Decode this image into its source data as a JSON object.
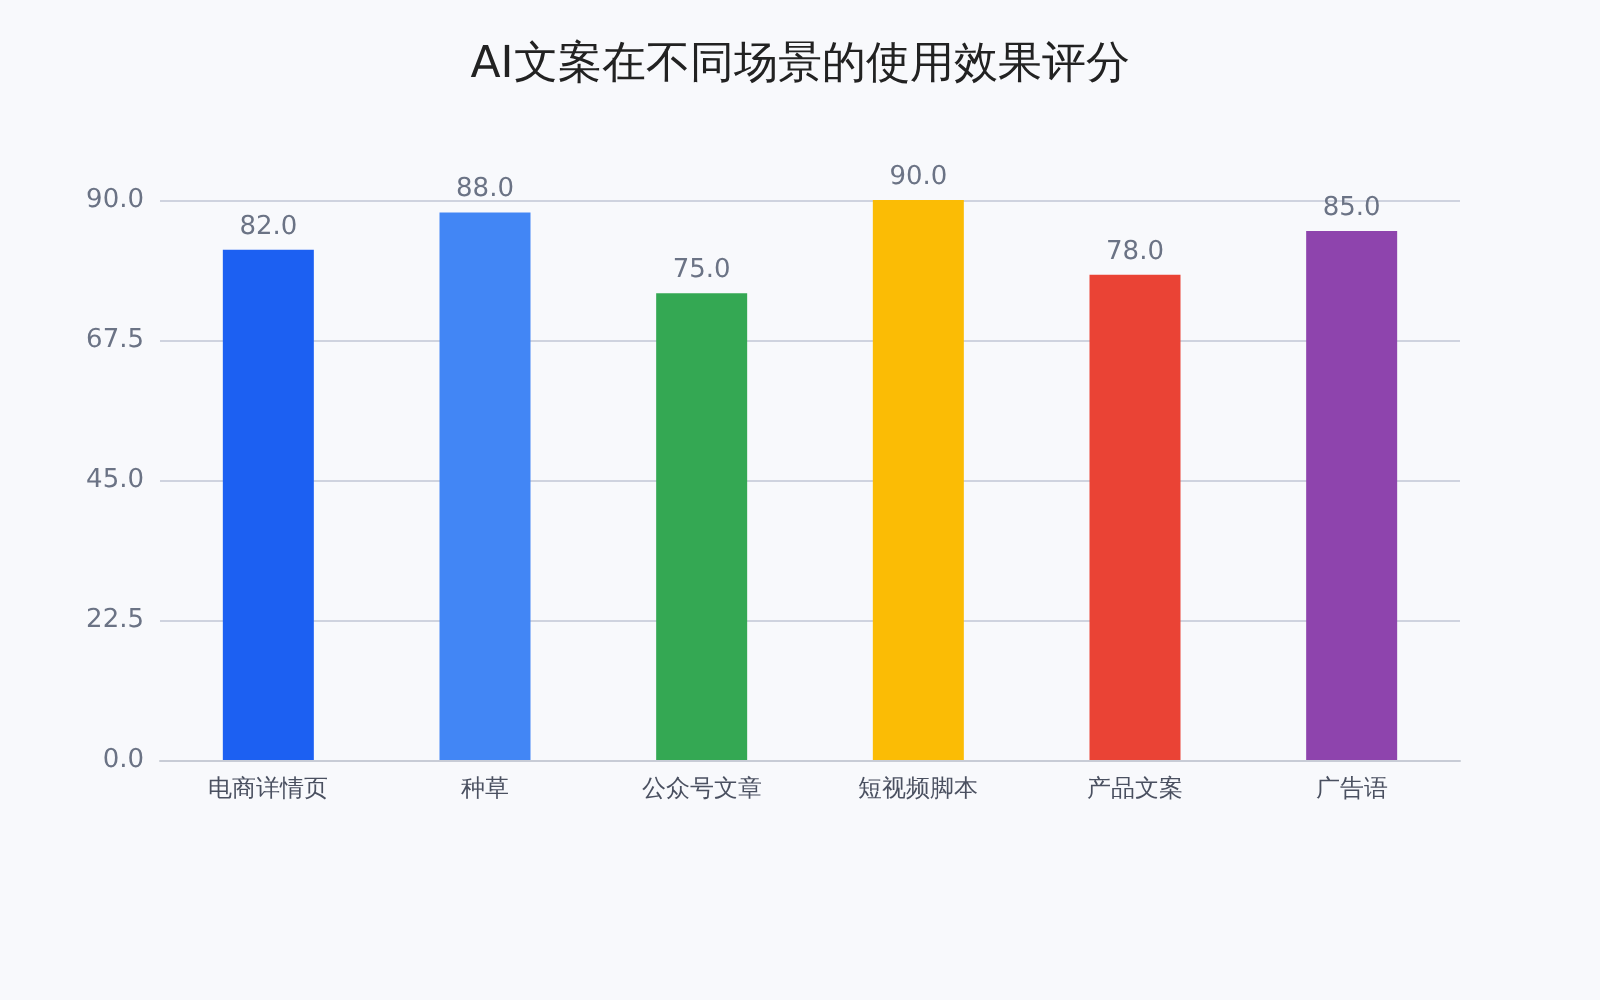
{
  "chart_data": {
    "type": "bar",
    "title": "AI文案在不同场景的使用效果评分",
    "categories": [
      "电商详情页",
      "种草",
      "公众号文章",
      "短视频脚本",
      "产品文案",
      "广告语"
    ],
    "values": [
      82,
      88,
      75,
      90,
      78,
      85
    ],
    "value_labels": [
      "82.0",
      "88.0",
      "75.0",
      "90.0",
      "78.0",
      "85.0"
    ],
    "colors": [
      "#1c60f2",
      "#4286f5",
      "#34a853",
      "#fbbc05",
      "#ea4335",
      "#8e44ad"
    ],
    "ylim": [
      0,
      90
    ],
    "yticks": [
      {
        "value": 0,
        "label": "0.0"
      },
      22.5,
      {
        "value": 45,
        "label": "45.0"
      },
      67.5,
      {
        "value": 90,
        "label": "90.0"
      }
    ],
    "grid": "y"
  }
}
